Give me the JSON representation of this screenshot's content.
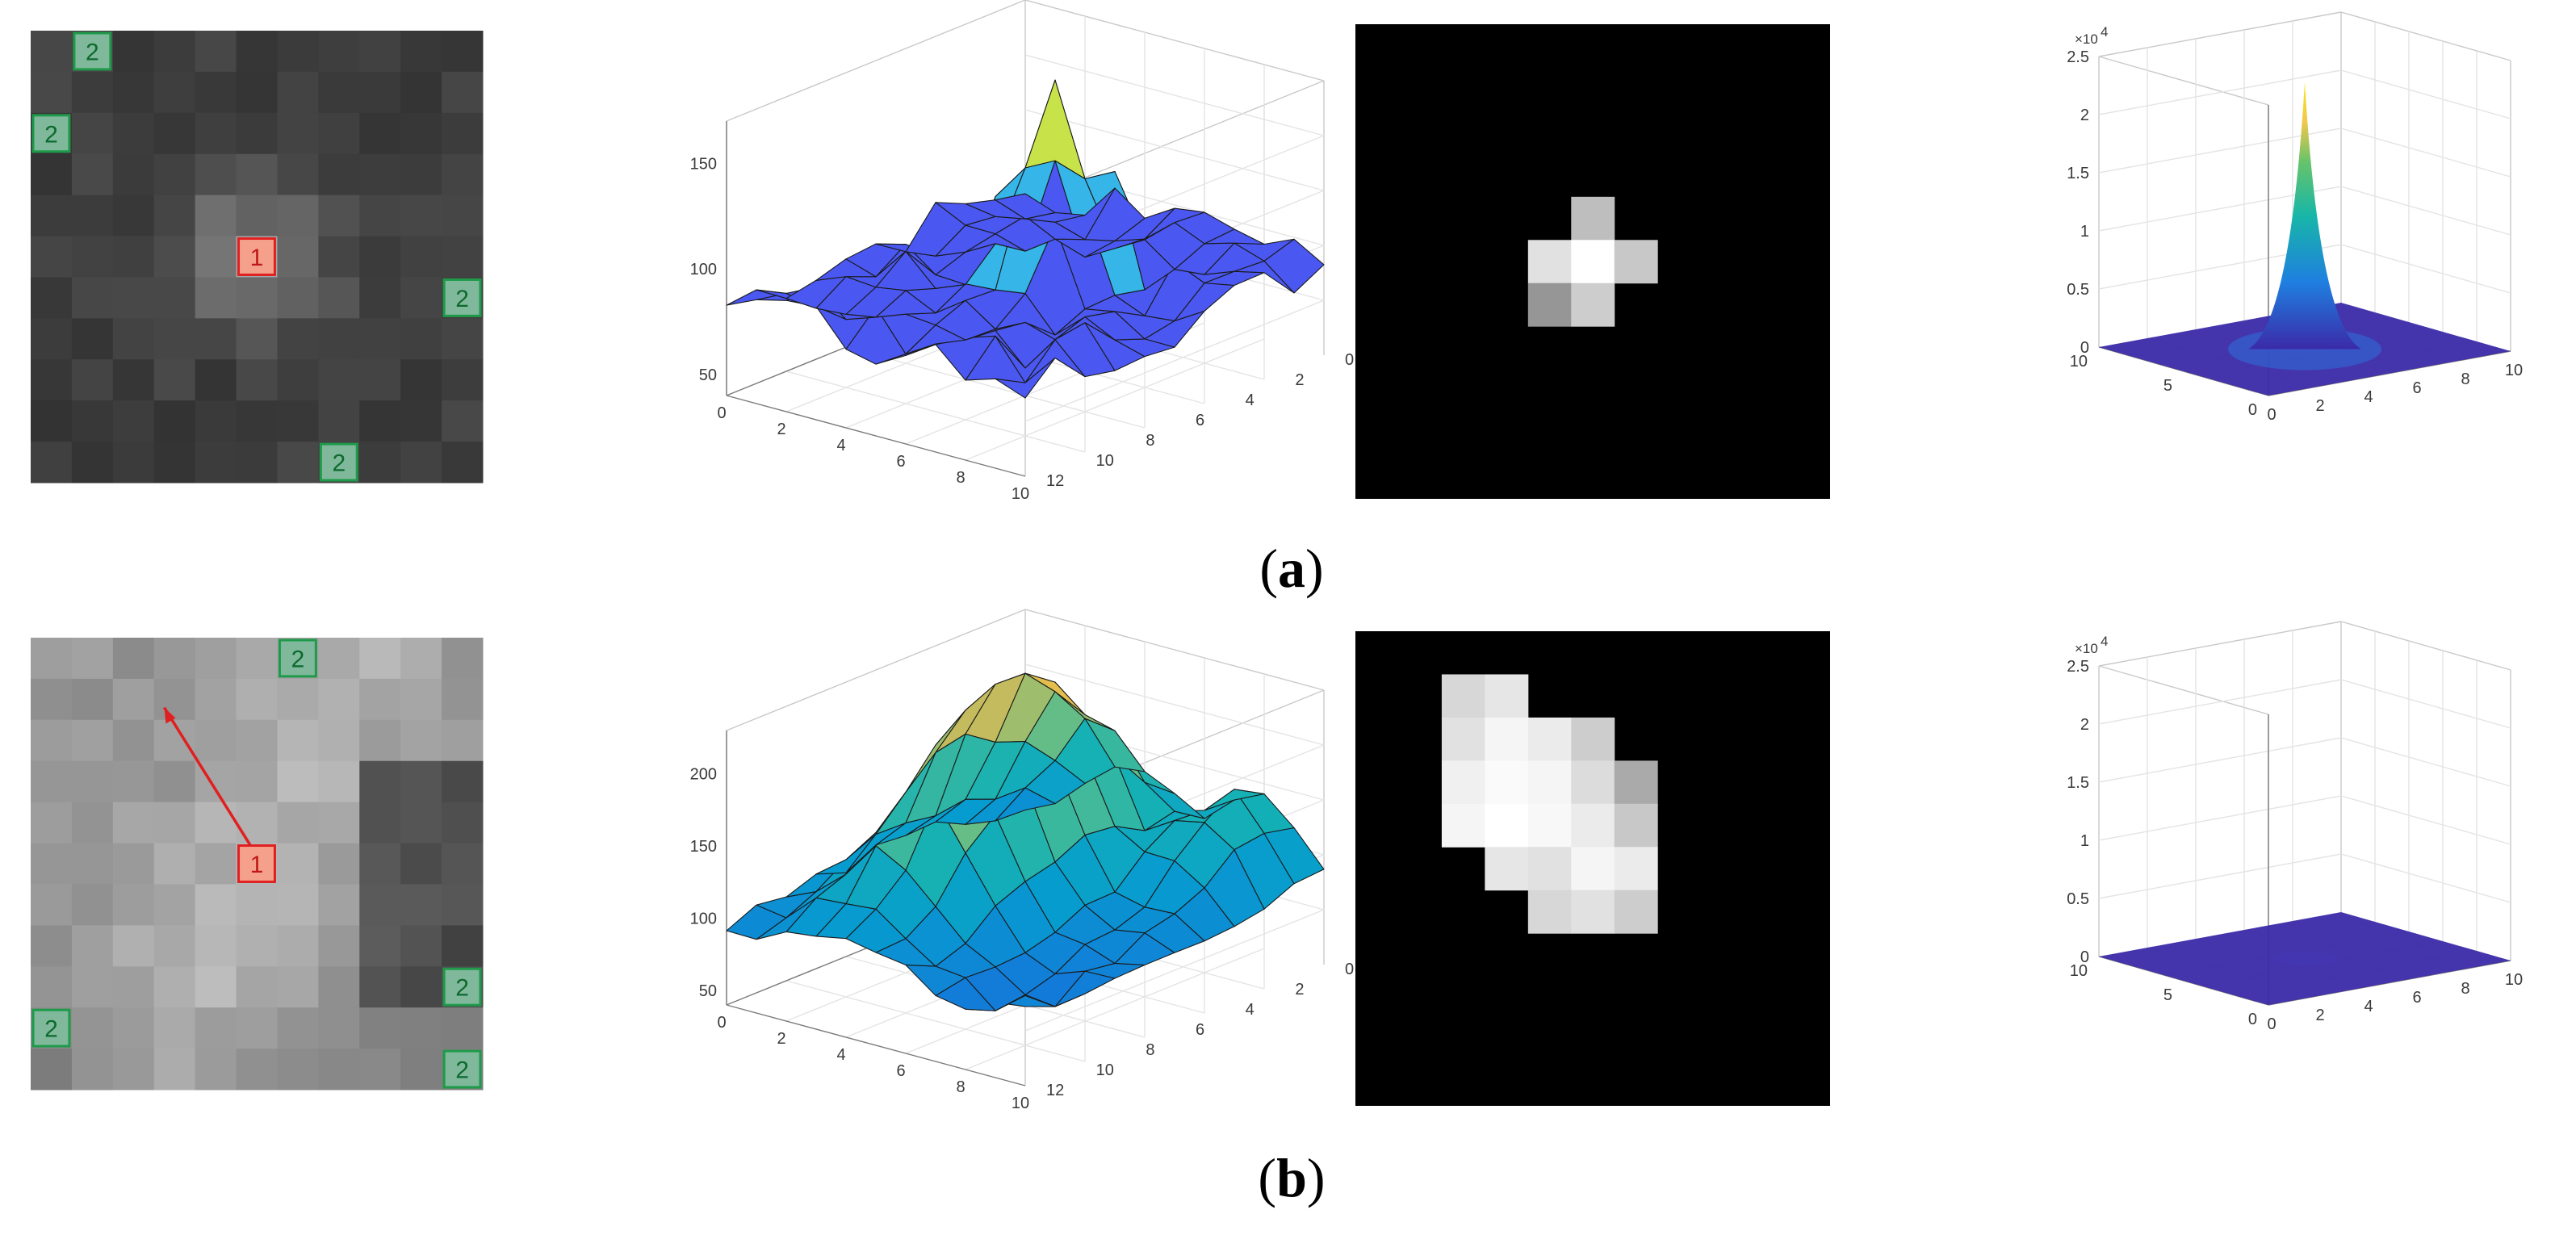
{
  "rows": [
    {
      "id": "a",
      "label": "a",
      "image_markers": [
        {
          "text": "1",
          "kind": "center",
          "col": 5,
          "row": 5
        },
        {
          "text": "2",
          "kind": "neighbor",
          "col": 1,
          "row": 0
        },
        {
          "text": "2",
          "kind": "neighbor",
          "col": 0,
          "row": 2
        },
        {
          "text": "2",
          "kind": "neighbor",
          "col": 10,
          "row": 6
        },
        {
          "text": "2",
          "kind": "neighbor",
          "col": 7,
          "row": 10
        }
      ],
      "surface_plot": {
        "z_ticks": [
          "50",
          "100",
          "150"
        ],
        "x_ticks": [
          "0",
          "2",
          "4",
          "6",
          "8",
          "10"
        ],
        "y_ticks": [
          "0",
          "2",
          "4",
          "6",
          "8",
          "10",
          "12"
        ]
      },
      "response_plot": {
        "exponent_base": "×10",
        "exponent_power": "4",
        "z_ticks": [
          "0",
          "0.5",
          "1",
          "1.5",
          "2",
          "2.5"
        ],
        "left_ticks": [
          "0",
          "5",
          "10"
        ],
        "right_ticks": [
          "0",
          "2",
          "4",
          "6",
          "8",
          "10"
        ]
      }
    },
    {
      "id": "b",
      "label": "b",
      "image_markers": [
        {
          "text": "1",
          "kind": "center",
          "col": 5,
          "row": 5
        },
        {
          "text": "2",
          "kind": "neighbor",
          "col": 6,
          "row": 0
        },
        {
          "text": "2",
          "kind": "neighbor",
          "col": 10,
          "row": 8
        },
        {
          "text": "2",
          "kind": "neighbor",
          "col": 0,
          "row": 9
        },
        {
          "text": "2",
          "kind": "neighbor",
          "col": 10,
          "row": 10
        }
      ],
      "surface_plot": {
        "z_ticks": [
          "50",
          "100",
          "150",
          "200"
        ],
        "x_ticks": [
          "0",
          "2",
          "4",
          "6",
          "8",
          "10"
        ],
        "y_ticks": [
          "0",
          "2",
          "4",
          "6",
          "8",
          "10",
          "12"
        ]
      },
      "response_plot": {
        "exponent_base": "×10",
        "exponent_power": "4",
        "z_ticks": [
          "0",
          "0.5",
          "1",
          "1.5",
          "2",
          "2.5"
        ],
        "left_ticks": [
          "0",
          "5",
          "10"
        ],
        "right_ticks": [
          "0",
          "2",
          "4",
          "6",
          "8",
          "10"
        ]
      }
    }
  ],
  "colors": {
    "marker_center_fill": "#f4a08a",
    "marker_center_stroke": "#e02020",
    "marker_neighbor_fill": "#7fb89a",
    "marker_neighbor_stroke": "#1e9a4a",
    "arrow": "#e02020",
    "response_base": "#3b2aa8"
  }
}
